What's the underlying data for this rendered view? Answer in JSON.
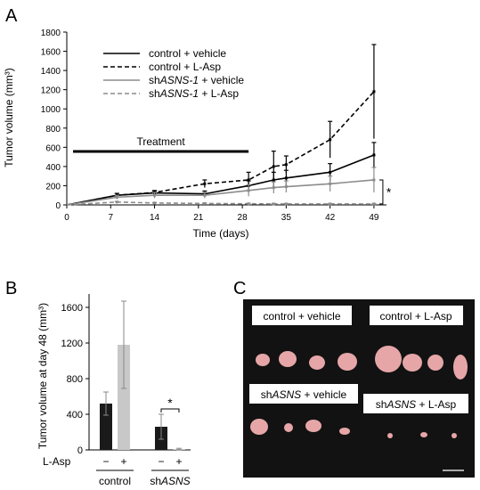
{
  "panels": {
    "a": "A",
    "b": "B",
    "c": "C"
  },
  "chart_data": [
    {
      "type": "line",
      "panel": "A",
      "xlabel": "Time (days)",
      "ylabel": "Tumor volume (mm³)",
      "xticks": [
        0,
        7,
        14,
        21,
        28,
        35,
        42,
        49
      ],
      "yticks": [
        0,
        200,
        400,
        600,
        800,
        1000,
        1200,
        1400,
        1600,
        1800
      ],
      "xlim": [
        0,
        51
      ],
      "ylim": [
        0,
        1800
      ],
      "grid": false,
      "legend_position": "top-left",
      "annotation": {
        "treatment_label": "Treatment",
        "treatment_days": [
          1,
          29
        ],
        "significance": "*"
      },
      "series": [
        {
          "name": "control + vehicle",
          "color": "#000000",
          "dash": "solid",
          "x": [
            8,
            14,
            22,
            29,
            33,
            35,
            42,
            49
          ],
          "y": [
            100,
            125,
            115,
            200,
            260,
            280,
            340,
            520
          ],
          "err": [
            20,
            20,
            30,
            50,
            80,
            80,
            90,
            130
          ]
        },
        {
          "name": "control + L-Asp",
          "color": "#000000",
          "dash": "dashed",
          "x": [
            8,
            14,
            22,
            29,
            33,
            35,
            42,
            49
          ],
          "y": [
            100,
            130,
            220,
            260,
            400,
            420,
            680,
            1180
          ],
          "err": [
            20,
            20,
            40,
            80,
            160,
            90,
            190,
            490
          ]
        },
        {
          "name": "shASNS-1 + vehicle",
          "color": "#8c8c8c",
          "dash": "solid",
          "x": [
            8,
            14,
            22,
            29,
            33,
            35,
            42,
            49
          ],
          "y": [
            80,
            100,
            100,
            150,
            180,
            190,
            220,
            260
          ],
          "err": [
            20,
            30,
            30,
            60,
            60,
            60,
            80,
            130
          ]
        },
        {
          "name": "shASNS-1 + L-Asp",
          "color": "#8c8c8c",
          "dash": "dashed",
          "x": [
            8,
            14,
            22,
            29,
            33,
            35,
            42,
            49
          ],
          "y": [
            30,
            20,
            15,
            12,
            10,
            10,
            10,
            10
          ],
          "err": [
            5,
            5,
            5,
            5,
            5,
            5,
            5,
            5
          ]
        }
      ]
    },
    {
      "type": "bar",
      "panel": "B",
      "ylabel": "Tumor volume at day 48 (mm³)",
      "yticks": [
        0,
        400,
        800,
        1200,
        1600
      ],
      "ylim": [
        0,
        1750
      ],
      "row_label": "L-Asp",
      "groups": [
        "control",
        "shASNS"
      ],
      "bar_signs": [
        "−",
        "+",
        "−",
        "+"
      ],
      "values": [
        520,
        1180,
        260,
        10
      ],
      "err": [
        130,
        490,
        140,
        8
      ],
      "colors": [
        "#1a1a1a",
        "#c8c8c8",
        "#1a1a1a",
        "#c8c8c8"
      ],
      "significance": "*"
    }
  ],
  "photo_labels": [
    "control + vehicle",
    "control + L-Asp",
    "shASNS + vehicle",
    "shASNS + L-Asp"
  ]
}
